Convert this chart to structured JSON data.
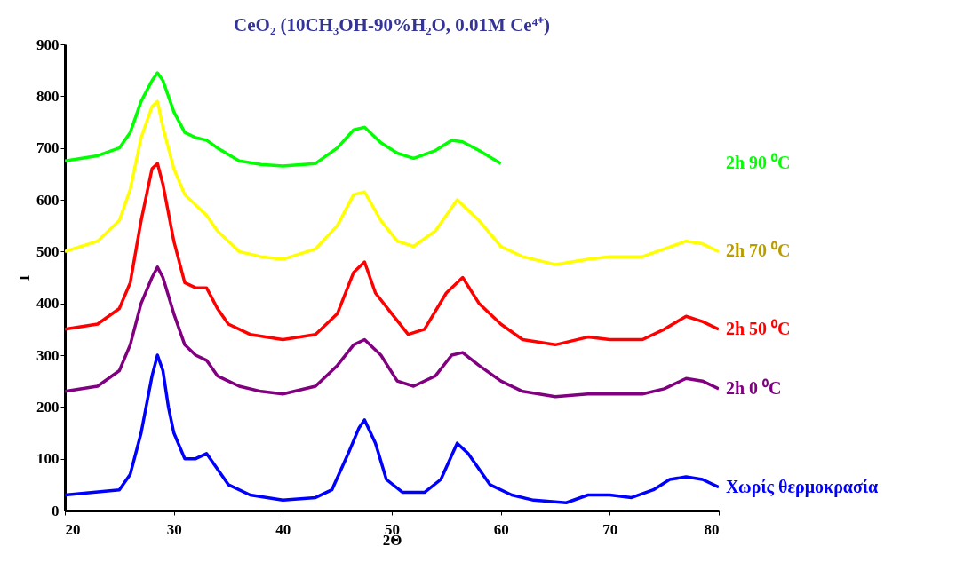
{
  "chart_data": {
    "type": "line",
    "title": "CeO₂ (10CH₃OH-90%H₂O, 0.01M Ce⁴⁺)",
    "xlabel": "2Θ",
    "ylabel": "I",
    "xlim": [
      20,
      80
    ],
    "xticks": [
      20,
      30,
      40,
      50,
      60,
      70,
      80
    ],
    "ylim": [
      0,
      900
    ],
    "yticks": [
      0,
      100,
      200,
      300,
      400,
      500,
      600,
      700,
      800,
      900
    ],
    "grid": false,
    "marker": "none",
    "line_style": "solid",
    "series": [
      {
        "name": "2h 90 ⁰C",
        "color": "#00ff00",
        "x": [
          20,
          23,
          25,
          26,
          27,
          28,
          28.5,
          29,
          30,
          31,
          32,
          33,
          34,
          36,
          38,
          40,
          43,
          45,
          46.5,
          47.5,
          49,
          50.5,
          52,
          54,
          55.5,
          56.5,
          58,
          60
        ],
        "values": [
          675,
          685,
          700,
          730,
          790,
          830,
          845,
          830,
          770,
          730,
          720,
          715,
          700,
          675,
          668,
          665,
          670,
          700,
          735,
          740,
          710,
          690,
          680,
          695,
          715,
          712,
          695,
          670
        ]
      },
      {
        "name": "2h 70 ⁰C",
        "color": "#ffff00",
        "x": [
          20,
          23,
          25,
          26,
          27,
          28,
          28.5,
          29,
          30,
          31,
          32,
          33,
          34,
          36,
          38,
          40,
          43,
          45,
          46.5,
          47.5,
          49,
          50.5,
          52,
          54,
          56,
          57,
          58,
          60,
          62,
          65,
          68,
          70,
          73,
          75,
          77,
          78.5,
          80
        ],
        "values": [
          500,
          520,
          560,
          620,
          720,
          780,
          790,
          740,
          660,
          610,
          590,
          570,
          540,
          500,
          490,
          485,
          505,
          550,
          610,
          615,
          560,
          520,
          510,
          540,
          600,
          580,
          560,
          510,
          490,
          475,
          485,
          490,
          490,
          505,
          520,
          515,
          500
        ]
      },
      {
        "name": "2h 50 ⁰C",
        "color": "#ff0000",
        "x": [
          20,
          23,
          25,
          26,
          27,
          28,
          28.5,
          29,
          30,
          31,
          32,
          33,
          34,
          35,
          37,
          40,
          43,
          45,
          46.5,
          47.5,
          48.5,
          50,
          51.5,
          53,
          55,
          56.5,
          58,
          60,
          62,
          65,
          68,
          70,
          73,
          75,
          77,
          78.5,
          80
        ],
        "values": [
          350,
          360,
          390,
          440,
          560,
          660,
          670,
          630,
          520,
          440,
          430,
          430,
          390,
          360,
          340,
          330,
          340,
          380,
          460,
          480,
          420,
          380,
          340,
          350,
          420,
          450,
          400,
          360,
          330,
          320,
          335,
          330,
          330,
          350,
          375,
          365,
          350
        ]
      },
      {
        "name": "2h 0 ⁰C",
        "color": "#800080",
        "x": [
          20,
          23,
          25,
          26,
          27,
          28,
          28.5,
          29,
          30,
          31,
          32,
          33,
          34,
          36,
          38,
          40,
          43,
          45,
          46.5,
          47.5,
          49,
          50.5,
          52,
          54,
          55.5,
          56.5,
          58,
          60,
          62,
          65,
          68,
          70,
          73,
          75,
          77,
          78.5,
          80
        ],
        "values": [
          230,
          240,
          270,
          320,
          400,
          450,
          470,
          450,
          380,
          320,
          300,
          290,
          260,
          240,
          230,
          225,
          240,
          280,
          320,
          330,
          300,
          250,
          240,
          260,
          300,
          305,
          280,
          250,
          230,
          220,
          225,
          225,
          225,
          235,
          255,
          250,
          235
        ]
      },
      {
        "name": "Χωρίς θερμοκρασία",
        "color": "#0000ff",
        "x": [
          20,
          25,
          26,
          27,
          28,
          28.5,
          29,
          29.5,
          30,
          31,
          32,
          33,
          34,
          35,
          37,
          40,
          43,
          44.5,
          46,
          47,
          47.5,
          48.5,
          49.5,
          51,
          53,
          54.5,
          56,
          57,
          58,
          59,
          61,
          63,
          66,
          68,
          70,
          72,
          74,
          75.5,
          77,
          78.5,
          80
        ],
        "values": [
          30,
          40,
          70,
          150,
          260,
          300,
          270,
          200,
          150,
          100,
          100,
          110,
          80,
          50,
          30,
          20,
          25,
          40,
          110,
          160,
          175,
          130,
          60,
          35,
          35,
          60,
          130,
          110,
          80,
          50,
          30,
          20,
          15,
          30,
          30,
          25,
          40,
          60,
          65,
          60,
          45
        ]
      }
    ]
  }
}
